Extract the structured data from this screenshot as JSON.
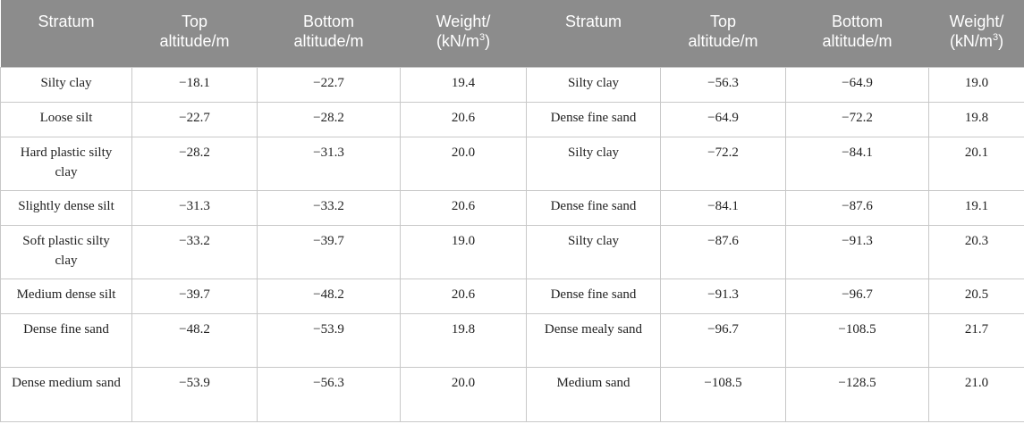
{
  "table": {
    "headers": [
      {
        "line1": "Stratum",
        "line2": ""
      },
      {
        "line1": "Top",
        "line2": "altitude/m"
      },
      {
        "line1": "Bottom",
        "line2": "altitude/m"
      },
      {
        "line1": "Weight/",
        "line2": "(kN/m",
        "sup": "3",
        "tail": ")"
      },
      {
        "line1": "Stratum",
        "line2": ""
      },
      {
        "line1": "Top",
        "line2": "altitude/m"
      },
      {
        "line1": "Bottom",
        "line2": "altitude/m"
      },
      {
        "line1": "Weight/",
        "line2": "(kN/m",
        "sup": "3",
        "tail": ")"
      }
    ],
    "rows": [
      [
        "Silty clay",
        "−18.1",
        "−22.7",
        "19.4",
        "Silty clay",
        "−56.3",
        "−64.9",
        "19.0"
      ],
      [
        "Loose silt",
        "−22.7",
        "−28.2",
        "20.6",
        "Dense fine sand",
        "−64.9",
        "−72.2",
        "19.8"
      ],
      [
        "Hard plastic silty clay",
        "−28.2",
        "−31.3",
        "20.0",
        "Silty clay",
        "−72.2",
        "−84.1",
        "20.1"
      ],
      [
        "Slightly dense silt",
        "−31.3",
        "−33.2",
        "20.6",
        "Dense fine sand",
        "−84.1",
        "−87.6",
        "19.1"
      ],
      [
        "Soft plastic silty clay",
        "−33.2",
        "−39.7",
        "19.0",
        "Silty clay",
        "−87.6",
        "−91.3",
        "20.3"
      ],
      [
        "Medium dense silt",
        "−39.7",
        "−48.2",
        "20.6",
        "Dense fine sand",
        "−91.3",
        "−96.7",
        "20.5"
      ],
      [
        "Dense fine sand",
        "−48.2",
        "−53.9",
        "19.8",
        "Dense mealy sand",
        "−96.7",
        "−108.5",
        "21.7"
      ],
      [
        "Dense medium sand",
        "−53.9",
        "−56.3",
        "20.0",
        "Medium sand",
        "−108.5",
        "−128.5",
        "21.0"
      ]
    ]
  }
}
